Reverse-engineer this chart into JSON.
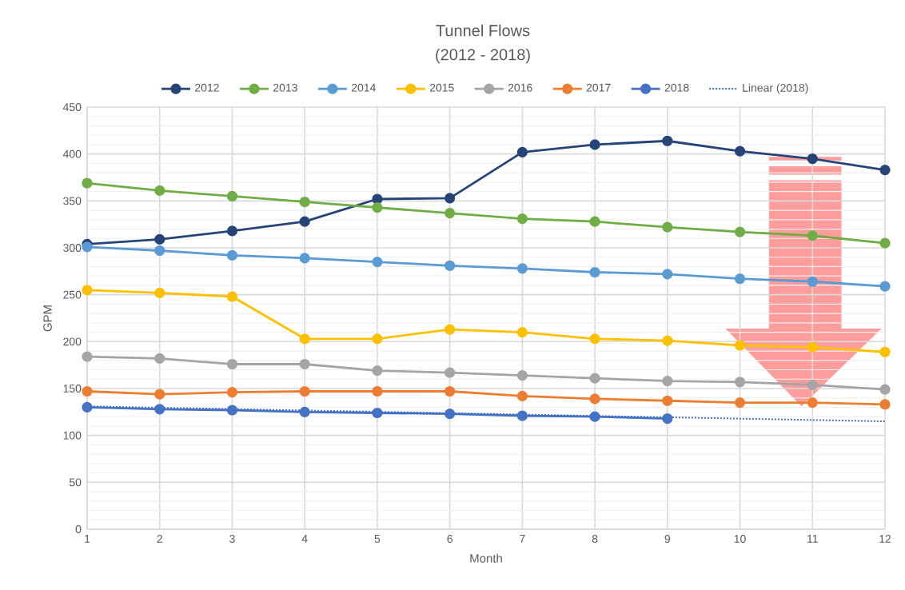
{
  "chart_data": {
    "type": "line",
    "title": "Tunnel Flows",
    "subtitle": "(2012 - 2018)",
    "xlabel": "Month",
    "ylabel": "GPM",
    "x": [
      1,
      2,
      3,
      4,
      5,
      6,
      7,
      8,
      9,
      10,
      11,
      12
    ],
    "series": [
      {
        "name": "2012",
        "color": "#264478",
        "values": [
          304,
          309,
          318,
          328,
          352,
          353,
          402,
          410,
          414,
          403,
          395,
          383
        ]
      },
      {
        "name": "2013",
        "color": "#70ad47",
        "values": [
          369,
          361,
          355,
          349,
          343,
          337,
          331,
          328,
          322,
          317,
          313,
          305
        ]
      },
      {
        "name": "2014",
        "color": "#5b9bd5",
        "values": [
          301,
          297,
          292,
          289,
          285,
          281,
          278,
          274,
          272,
          267,
          264,
          259
        ]
      },
      {
        "name": "2015",
        "color": "#ffc000",
        "values": [
          255,
          252,
          248,
          203,
          203,
          213,
          210,
          203,
          201,
          196,
          194,
          189
        ]
      },
      {
        "name": "2016",
        "color": "#a5a5a5",
        "values": [
          184,
          182,
          176,
          176,
          169,
          167,
          164,
          161,
          158,
          157,
          154,
          149
        ]
      },
      {
        "name": "2017",
        "color": "#ed7d31",
        "values": [
          147,
          144,
          146,
          147,
          147,
          147,
          142,
          139,
          137,
          135,
          135,
          133
        ]
      },
      {
        "name": "2018",
        "color": "#4472c4",
        "values": [
          130,
          128,
          127,
          125,
          124,
          123,
          121,
          120,
          118,
          null,
          null,
          null
        ]
      },
      {
        "name": "Linear (2018)",
        "color": "#4472c4",
        "type": "line",
        "x": [
          1,
          12
        ],
        "values": [
          131,
          115
        ],
        "marker": "none",
        "line_style": "dotted"
      }
    ],
    "xlim": [
      1,
      12
    ],
    "xticks": [
      1,
      2,
      3,
      4,
      5,
      6,
      7,
      8,
      9,
      10,
      11,
      12
    ],
    "ylim": [
      0,
      450
    ],
    "yticks": [
      0,
      50,
      100,
      150,
      200,
      250,
      300,
      350,
      400,
      450
    ],
    "grid": true,
    "legend": "top",
    "marker": "circle",
    "line_style": "solid"
  }
}
